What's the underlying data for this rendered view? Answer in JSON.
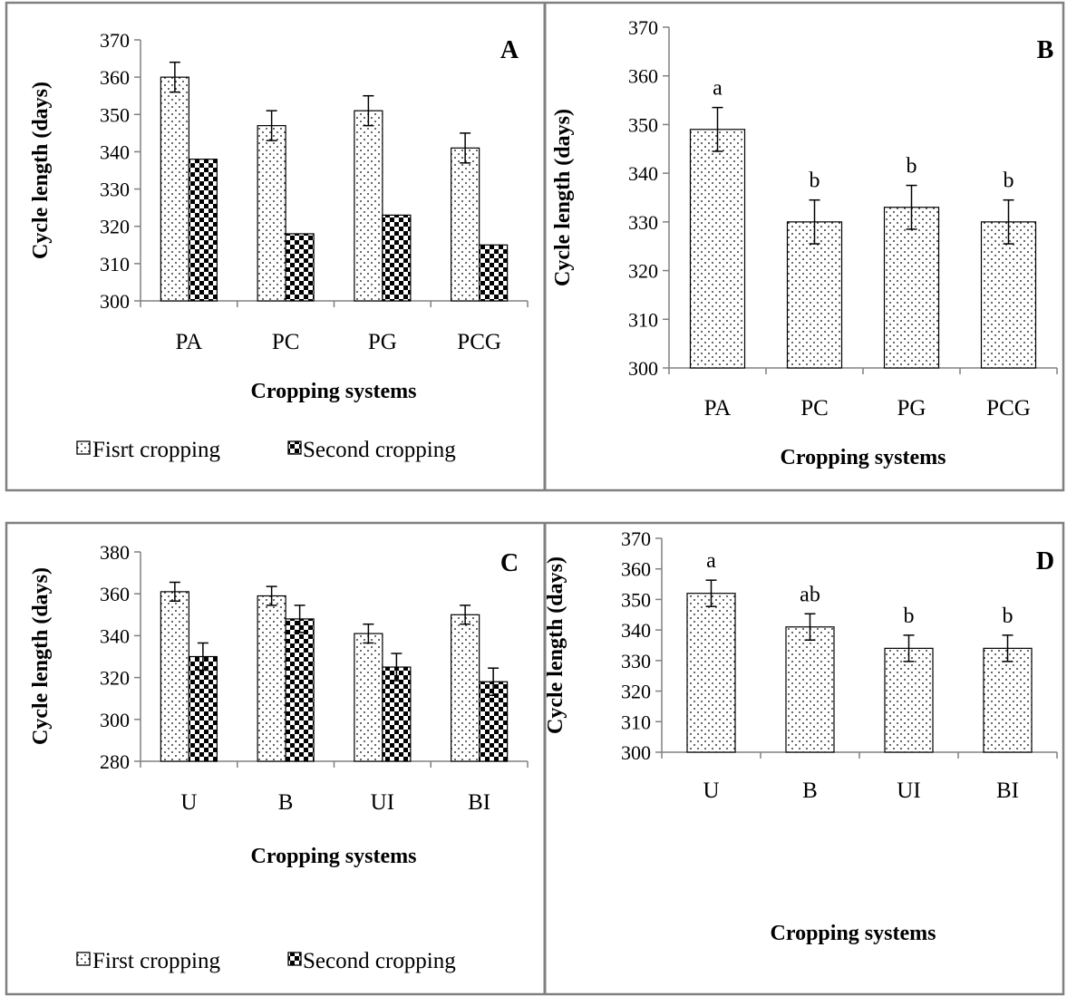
{
  "chart_data": [
    {
      "panel": "A",
      "type": "bar",
      "categories": [
        "PA",
        "PC",
        "PG",
        "PCG"
      ],
      "series": [
        {
          "name": "Fisrt cropping",
          "pattern": "dots",
          "values": [
            360,
            347,
            351,
            341
          ],
          "errors": [
            4,
            4,
            4,
            4
          ]
        },
        {
          "name": "Second cropping",
          "pattern": "checker",
          "values": [
            338,
            318,
            323,
            315
          ],
          "errors": [
            0,
            0,
            0,
            0
          ]
        }
      ],
      "xlabel": "Cropping systems",
      "ylabel": "Cycle length (days)",
      "ylim": [
        300,
        370
      ],
      "yticks": [
        300,
        310,
        320,
        330,
        340,
        350,
        360,
        370
      ],
      "legend": "bottom"
    },
    {
      "panel": "B",
      "type": "bar",
      "categories": [
        "PA",
        "PC",
        "PG",
        "PCG"
      ],
      "series": [
        {
          "pattern": "dots",
          "values": [
            349,
            330,
            333,
            330
          ],
          "errors": [
            4.5,
            4.5,
            4.5,
            4.5
          ],
          "letters": [
            "a",
            "b",
            "b",
            "b"
          ]
        }
      ],
      "xlabel": "Cropping systems",
      "ylabel": "Cycle length (days)",
      "ylim": [
        300,
        370
      ],
      "yticks": [
        300,
        310,
        320,
        330,
        340,
        350,
        360,
        370
      ]
    },
    {
      "panel": "C",
      "type": "bar",
      "categories": [
        "U",
        "B",
        "UI",
        "BI"
      ],
      "series": [
        {
          "name": "First cropping",
          "pattern": "dots",
          "values": [
            361,
            359,
            341,
            350
          ],
          "errors": [
            4.5,
            4.5,
            4.5,
            4.5
          ]
        },
        {
          "name": "Second cropping",
          "pattern": "checker",
          "values": [
            330,
            348,
            325,
            318
          ],
          "errors": [
            6.5,
            6.5,
            6.5,
            6.5
          ]
        }
      ],
      "xlabel": "Cropping systems",
      "ylabel": "Cycle length (days)",
      "ylim": [
        280,
        380
      ],
      "yticks": [
        280,
        300,
        320,
        340,
        360,
        380
      ],
      "legend": "bottom"
    },
    {
      "panel": "D",
      "type": "bar",
      "categories": [
        "U",
        "B",
        "UI",
        "BI"
      ],
      "series": [
        {
          "pattern": "dots",
          "values": [
            352,
            341,
            334,
            334
          ],
          "errors": [
            4.3,
            4.3,
            4.3,
            4.3
          ],
          "letters": [
            "a",
            "ab",
            "b",
            "b"
          ]
        }
      ],
      "xlabel": "Cropping systems",
      "ylabel": "Cycle length (days)",
      "ylim": [
        300,
        370
      ],
      "yticks": [
        300,
        310,
        320,
        330,
        340,
        350,
        360,
        370
      ]
    }
  ]
}
